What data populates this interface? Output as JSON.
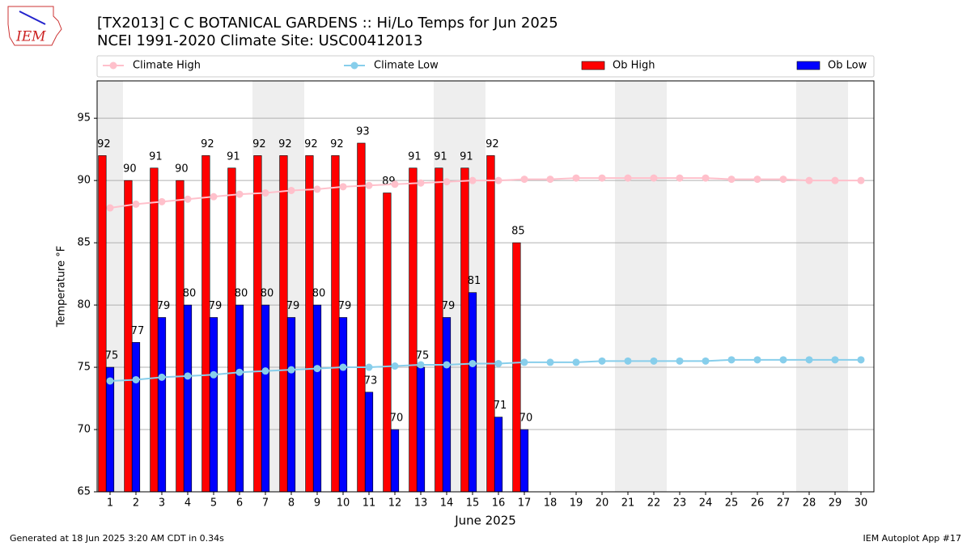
{
  "chart_data": {
    "type": "bar",
    "title": "[TX2013] C C BOTANICAL GARDENS :: Hi/Lo Temps for Jun 2025",
    "subtitle": "NCEI 1991-2020 Climate Site: USC00412013",
    "logo_text": "IEM",
    "xlabel": "June 2025",
    "ylabel": "Temperature °F",
    "footer_left": "Generated at 18 Jun 2025 3:20 AM CDT in 0.34s",
    "footer_right": "IEM Autoplot App #17",
    "categories": [
      "1",
      "2",
      "3",
      "4",
      "5",
      "6",
      "7",
      "8",
      "9",
      "10",
      "11",
      "12",
      "13",
      "14",
      "15",
      "16",
      "17",
      "18",
      "19",
      "20",
      "21",
      "22",
      "23",
      "24",
      "25",
      "26",
      "27",
      "28",
      "29",
      "30"
    ],
    "shaded_categories": [
      "1",
      "7",
      "8",
      "14",
      "15",
      "21",
      "22",
      "28",
      "29"
    ],
    "series": [
      {
        "name": "Climate High",
        "kind": "line",
        "color": "#ffc0cb",
        "values": [
          87.8,
          88.1,
          88.3,
          88.5,
          88.7,
          88.9,
          89.0,
          89.2,
          89.3,
          89.5,
          89.6,
          89.7,
          89.8,
          89.9,
          90.0,
          90.0,
          90.1,
          90.1,
          90.2,
          90.2,
          90.2,
          90.2,
          90.2,
          90.2,
          90.1,
          90.1,
          90.1,
          90.0,
          90.0,
          90.0
        ]
      },
      {
        "name": "Climate Low",
        "kind": "line",
        "color": "#87ceeb",
        "values": [
          73.9,
          74.0,
          74.2,
          74.3,
          74.4,
          74.6,
          74.7,
          74.8,
          74.9,
          75.0,
          75.0,
          75.1,
          75.2,
          75.2,
          75.3,
          75.3,
          75.4,
          75.4,
          75.4,
          75.5,
          75.5,
          75.5,
          75.5,
          75.5,
          75.6,
          75.6,
          75.6,
          75.6,
          75.6,
          75.6
        ]
      },
      {
        "name": "Ob High",
        "kind": "bar",
        "color": "#ff0000",
        "values": [
          92,
          90,
          91,
          90,
          92,
          91,
          92,
          92,
          92,
          92,
          93,
          89,
          91,
          91,
          91,
          92,
          85,
          null,
          null,
          null,
          null,
          null,
          null,
          null,
          null,
          null,
          null,
          null,
          null,
          null
        ]
      },
      {
        "name": "Ob Low",
        "kind": "bar",
        "color": "#0000ff",
        "values": [
          75,
          77,
          79,
          80,
          79,
          80,
          80,
          79,
          80,
          79,
          73,
          70,
          75,
          79,
          81,
          71,
          70,
          null,
          null,
          null,
          null,
          null,
          null,
          null,
          null,
          null,
          null,
          null,
          null,
          null
        ]
      }
    ],
    "ylim": [
      65,
      98
    ],
    "yticks": [
      65,
      70,
      75,
      80,
      85,
      90,
      95
    ],
    "grid": true
  }
}
